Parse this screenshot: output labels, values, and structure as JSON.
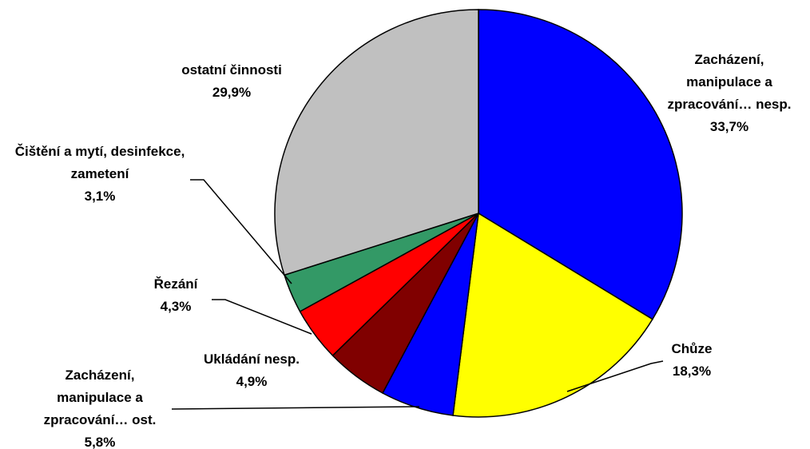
{
  "chart_data": {
    "type": "pie",
    "categories": [
      "Zacházení, manipulace a zpracování… nesp.",
      "Chůze",
      "Zacházení, manipulace a zpracování… ost.",
      "Ukládání nesp.",
      "Řezání",
      "Čištění a mytí, desinfekce, zametení",
      "ostatní činnosti"
    ],
    "values": [
      33.7,
      18.3,
      5.8,
      4.9,
      4.3,
      3.1,
      29.9
    ],
    "value_labels": [
      "33,7%",
      "18,3%",
      "5,8%",
      "4,9%",
      "4,3%",
      "3,1%",
      "29,9%"
    ],
    "colors": [
      "#0000ff",
      "#ffff00",
      "#0000ff",
      "#800000",
      "#ff0000",
      "#339966",
      "#c0c0c0"
    ]
  }
}
